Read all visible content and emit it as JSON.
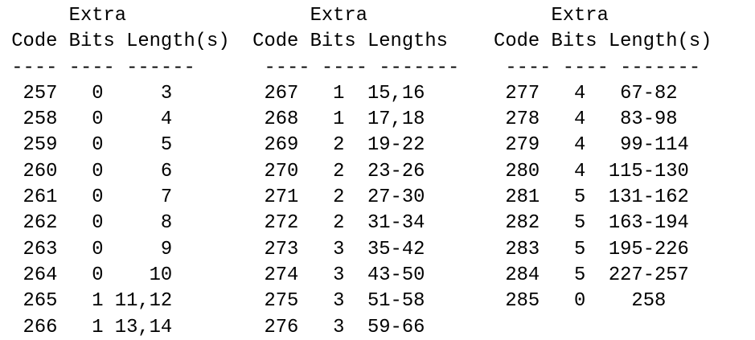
{
  "colors": {
    "text": "#000000",
    "background": "#ffffff"
  },
  "table": {
    "groups": [
      {
        "header_top": "Extra",
        "columns": [
          "Code",
          "Bits",
          "Length(s)"
        ],
        "underline": "---- ---- ------",
        "rows": [
          {
            "code": "257",
            "bits": "0",
            "lengths": "3"
          },
          {
            "code": "258",
            "bits": "0",
            "lengths": "4"
          },
          {
            "code": "259",
            "bits": "0",
            "lengths": "5"
          },
          {
            "code": "260",
            "bits": "0",
            "lengths": "6"
          },
          {
            "code": "261",
            "bits": "0",
            "lengths": "7"
          },
          {
            "code": "262",
            "bits": "0",
            "lengths": "8"
          },
          {
            "code": "263",
            "bits": "0",
            "lengths": "9"
          },
          {
            "code": "264",
            "bits": "0",
            "lengths": "10"
          },
          {
            "code": "265",
            "bits": "1",
            "lengths": "11,12"
          },
          {
            "code": "266",
            "bits": "1",
            "lengths": "13,14"
          }
        ]
      },
      {
        "header_top": "Extra",
        "columns": [
          "Code",
          "Bits",
          "Lengths"
        ],
        "underline": "---- ---- -------",
        "rows": [
          {
            "code": "267",
            "bits": "1",
            "lengths": "15,16"
          },
          {
            "code": "268",
            "bits": "1",
            "lengths": "17,18"
          },
          {
            "code": "269",
            "bits": "2",
            "lengths": "19-22"
          },
          {
            "code": "270",
            "bits": "2",
            "lengths": "23-26"
          },
          {
            "code": "271",
            "bits": "2",
            "lengths": "27-30"
          },
          {
            "code": "272",
            "bits": "2",
            "lengths": "31-34"
          },
          {
            "code": "273",
            "bits": "3",
            "lengths": "35-42"
          },
          {
            "code": "274",
            "bits": "3",
            "lengths": "43-50"
          },
          {
            "code": "275",
            "bits": "3",
            "lengths": "51-58"
          },
          {
            "code": "276",
            "bits": "3",
            "lengths": "59-66"
          }
        ]
      },
      {
        "header_top": "Extra",
        "columns": [
          "Code",
          "Bits",
          "Length(s)"
        ],
        "underline": "---- ---- -------",
        "rows": [
          {
            "code": "277",
            "bits": "4",
            "lengths": "67-82"
          },
          {
            "code": "278",
            "bits": "4",
            "lengths": "83-98"
          },
          {
            "code": "279",
            "bits": "4",
            "lengths": "99-114"
          },
          {
            "code": "280",
            "bits": "4",
            "lengths": "115-130"
          },
          {
            "code": "281",
            "bits": "5",
            "lengths": "131-162"
          },
          {
            "code": "282",
            "bits": "5",
            "lengths": "163-194"
          },
          {
            "code": "283",
            "bits": "5",
            "lengths": "195-226"
          },
          {
            "code": "284",
            "bits": "5",
            "lengths": "227-257"
          },
          {
            "code": "285",
            "bits": "0",
            "lengths": "258"
          }
        ]
      }
    ]
  }
}
